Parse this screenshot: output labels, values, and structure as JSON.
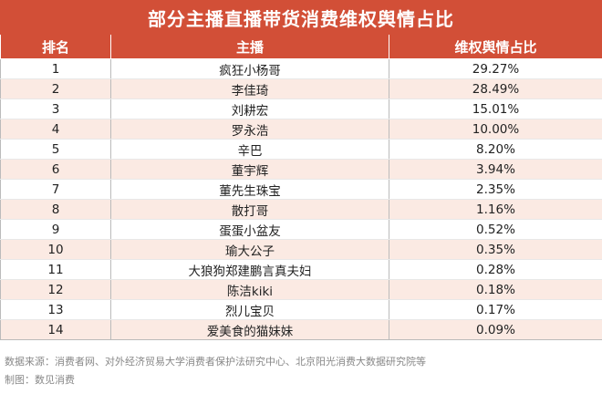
{
  "chart_data": {
    "type": "table",
    "title": "部分主播直播带货消费维权舆情占比",
    "columns": [
      "排名",
      "主播",
      "维权舆情占比"
    ],
    "rows": [
      {
        "rank": "1",
        "anchor": "疯狂小杨哥",
        "share": "29.27%"
      },
      {
        "rank": "2",
        "anchor": "李佳琦",
        "share": "28.49%"
      },
      {
        "rank": "3",
        "anchor": "刘耕宏",
        "share": "15.01%"
      },
      {
        "rank": "4",
        "anchor": "罗永浩",
        "share": "10.00%"
      },
      {
        "rank": "5",
        "anchor": "辛巴",
        "share": "8.20%"
      },
      {
        "rank": "6",
        "anchor": "董宇辉",
        "share": "3.94%"
      },
      {
        "rank": "7",
        "anchor": "董先生珠宝",
        "share": "2.35%"
      },
      {
        "rank": "8",
        "anchor": "散打哥",
        "share": "1.16%"
      },
      {
        "rank": "9",
        "anchor": "蛋蛋小盆友",
        "share": "0.52%"
      },
      {
        "rank": "10",
        "anchor": "瑜大公子",
        "share": "0.35%"
      },
      {
        "rank": "11",
        "anchor": "大狼狗郑建鹏言真夫妇",
        "share": "0.28%"
      },
      {
        "rank": "12",
        "anchor": "陈洁kiki",
        "share": "0.18%"
      },
      {
        "rank": "13",
        "anchor": "烈儿宝贝",
        "share": "0.17%"
      },
      {
        "rank": "14",
        "anchor": "爱美食的猫妹妹",
        "share": "0.09%"
      }
    ],
    "source": "数据来源：消费者网、对外经济贸易大学消费者保护法研究中心、北京阳光消费大数据研究院等",
    "maker": "制图：数见消费"
  },
  "colors": {
    "header_bg": "#d24f37",
    "stripe_bg": "#fbeae3",
    "footer_text": "#888888"
  }
}
